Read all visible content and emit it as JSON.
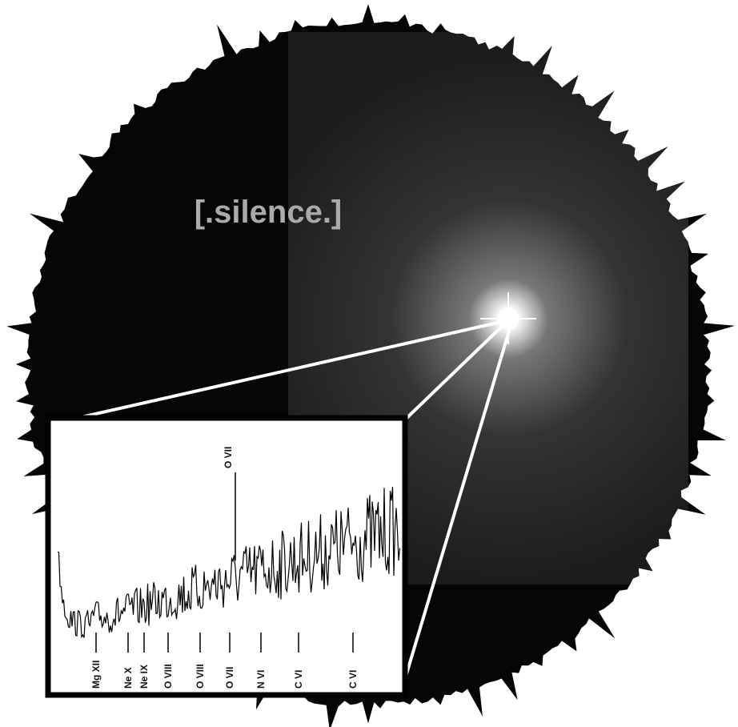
{
  "title": "[.silence.]",
  "spectrum": {
    "top_lines": [
      "O VII"
    ],
    "bottom_lines": [
      "Mg XII",
      "Ne X",
      "Ne IX",
      "O VIII",
      "O VIII",
      "O VII",
      "N VI",
      "C VI",
      "C VI"
    ]
  }
}
